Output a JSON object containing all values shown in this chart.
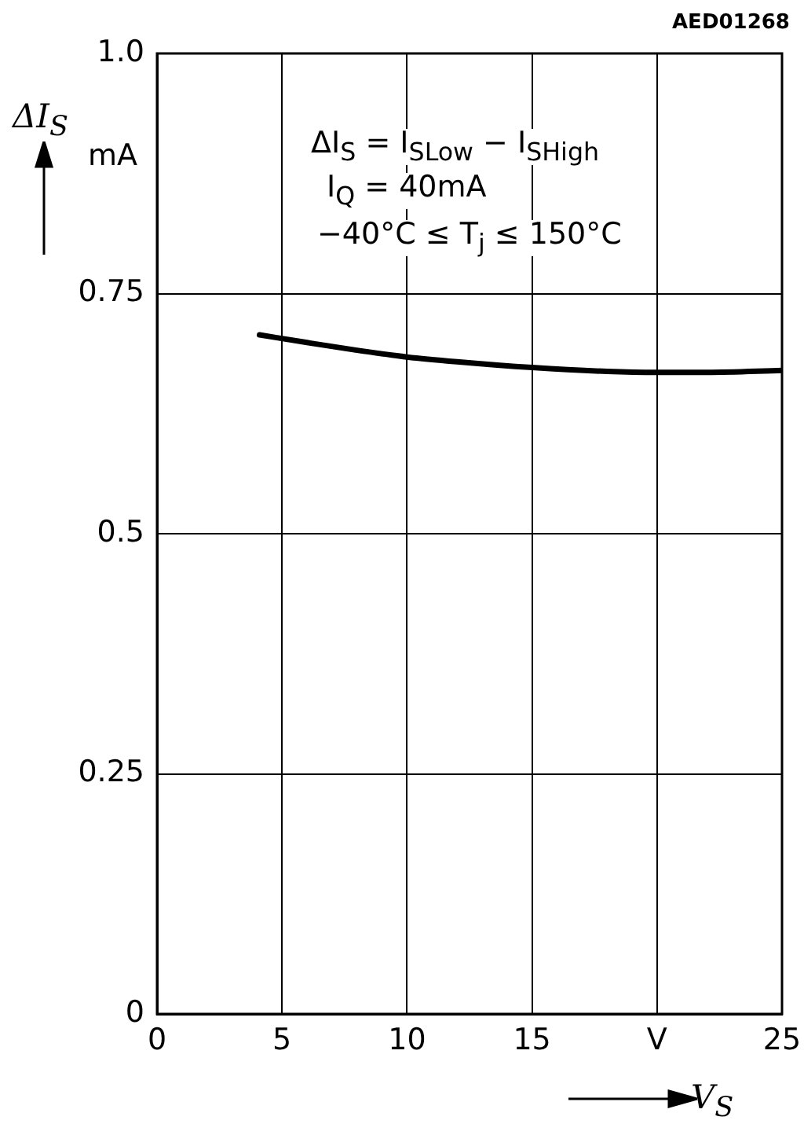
{
  "chart_data": {
    "type": "line",
    "xlabel": "V$_{S}$",
    "ylabel": "ΔI$_{S}$",
    "x": [
      4.1,
      6,
      8,
      10,
      12,
      15,
      18,
      20,
      22,
      25
    ],
    "series": [
      {
        "color": "#000000",
        "values": [
          0.707,
          0.699,
          0.691,
          0.684,
          0.679,
          0.673,
          0.669,
          0.668,
          0.668,
          0.67
        ]
      }
    ],
    "xlim": [
      0,
      25
    ],
    "xticks": [
      0,
      5,
      10,
      15,
      {
        "value": 20,
        "label": "V"
      },
      25
    ],
    "ylim": [
      0,
      1.0
    ],
    "yticks": [
      0,
      0.25,
      0.5,
      0.75,
      {
        "value": 1.0,
        "label": "1.0"
      }
    ],
    "grid": true,
    "legend": false,
    "marker": "none",
    "line_style": "solid",
    "annotations": [
      "mA",
      "ΔI$_{S}$ = I$_{SLow}$ − I$_{SHigh}$",
      "I$_{Q}$ = 40mA",
      "−40°C ≤ T$_{j}$ ≤ 150°C",
      "AED01268"
    ]
  }
}
